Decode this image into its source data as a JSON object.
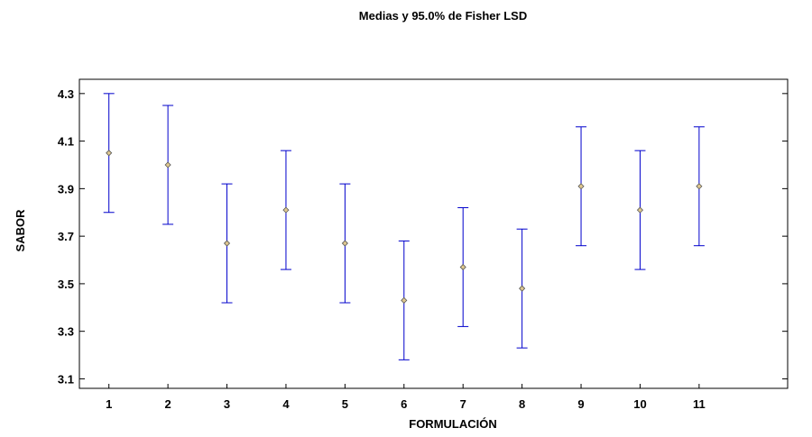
{
  "chart_data": {
    "type": "scatter",
    "title": "Medias y 95.0% de Fisher LSD",
    "xlabel": "FORMULACIÓN",
    "ylabel": "SABOR",
    "categories": [
      "1",
      "2",
      "3",
      "4",
      "5",
      "6",
      "7",
      "8",
      "9",
      "10",
      "11"
    ],
    "means": [
      4.05,
      4.0,
      3.67,
      3.81,
      3.67,
      3.43,
      3.57,
      3.48,
      3.91,
      3.81,
      3.91
    ],
    "lower": [
      3.8,
      3.75,
      3.42,
      3.56,
      3.42,
      3.18,
      3.32,
      3.23,
      3.66,
      3.56,
      3.66
    ],
    "upper": [
      4.3,
      4.25,
      3.92,
      4.06,
      3.92,
      3.68,
      3.82,
      3.73,
      4.16,
      4.06,
      4.16
    ],
    "yticks": [
      "3.1",
      "3.3",
      "3.5",
      "3.7",
      "3.9",
      "4.1",
      "4.3"
    ],
    "ylim": [
      3.06,
      4.36
    ],
    "xlim": [
      -0.5,
      11.5
    ],
    "grid": false,
    "colors": {
      "error_bar": "#0000cc",
      "marker_fill": "#e0c890",
      "marker_edge": "#555555",
      "axis": "#000000"
    }
  }
}
